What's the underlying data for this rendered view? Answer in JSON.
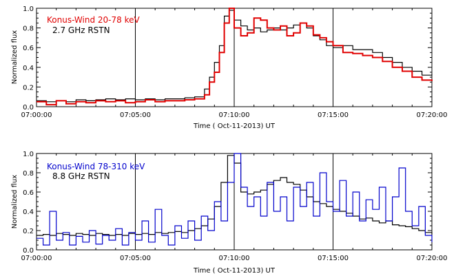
{
  "chart_data": [
    {
      "type": "line",
      "title": "",
      "xlabel": "Time ( Oct-11-2013) UT",
      "ylabel": "Normalized flux",
      "xlim": [
        "07:00:00",
        "07:20:00"
      ],
      "ylim": [
        0,
        1.0
      ],
      "x_ticks": [
        "07:00:00",
        "07:05:00",
        "07:10:00",
        "07:15:00",
        "07:20:00"
      ],
      "y_ticks": [
        "0.0",
        "0.2",
        "0.4",
        "0.6",
        "0.8",
        "1.0"
      ],
      "vlines": [
        "07:05:00",
        "07:10:00",
        "07:15:00"
      ],
      "legend": "top-left",
      "series": [
        {
          "name": "Konus-Wind 20-78 keV",
          "color": "#e00000",
          "x": [
            "07:00:00",
            "07:00:30",
            "07:01:00",
            "07:01:30",
            "07:02:00",
            "07:02:30",
            "07:03:00",
            "07:03:30",
            "07:04:00",
            "07:04:30",
            "07:05:00",
            "07:05:30",
            "07:06:00",
            "07:06:30",
            "07:07:00",
            "07:07:30",
            "07:08:00",
            "07:08:30",
            "07:08:45",
            "07:09:00",
            "07:09:15",
            "07:09:30",
            "07:09:45",
            "07:10:00",
            "07:10:20",
            "07:10:40",
            "07:11:00",
            "07:11:20",
            "07:11:40",
            "07:12:00",
            "07:12:20",
            "07:12:40",
            "07:13:00",
            "07:13:20",
            "07:13:40",
            "07:14:00",
            "07:14:20",
            "07:14:40",
            "07:15:00",
            "07:15:30",
            "07:16:00",
            "07:16:30",
            "07:17:00",
            "07:17:30",
            "07:18:00",
            "07:18:30",
            "07:19:00",
            "07:19:30",
            "07:20:00"
          ],
          "y": [
            0.05,
            0.02,
            0.06,
            0.03,
            0.05,
            0.04,
            0.06,
            0.05,
            0.06,
            0.04,
            0.05,
            0.07,
            0.05,
            0.06,
            0.06,
            0.07,
            0.08,
            0.12,
            0.25,
            0.35,
            0.55,
            0.85,
            1.0,
            0.8,
            0.72,
            0.75,
            0.9,
            0.88,
            0.8,
            0.78,
            0.82,
            0.72,
            0.75,
            0.85,
            0.82,
            0.73,
            0.7,
            0.66,
            0.62,
            0.55,
            0.54,
            0.52,
            0.5,
            0.46,
            0.4,
            0.36,
            0.3,
            0.27,
            0.26
          ]
        },
        {
          "name": "2.7 GHz RSTN",
          "color": "#000000",
          "x": [
            "07:00:00",
            "07:00:30",
            "07:01:00",
            "07:01:30",
            "07:02:00",
            "07:02:30",
            "07:03:00",
            "07:03:30",
            "07:04:00",
            "07:04:30",
            "07:05:00",
            "07:05:30",
            "07:06:00",
            "07:06:30",
            "07:07:00",
            "07:07:30",
            "07:08:00",
            "07:08:30",
            "07:08:45",
            "07:09:00",
            "07:09:15",
            "07:09:30",
            "07:09:45",
            "07:10:00",
            "07:10:20",
            "07:10:40",
            "07:11:00",
            "07:11:20",
            "07:11:40",
            "07:12:00",
            "07:12:20",
            "07:12:40",
            "07:13:00",
            "07:13:20",
            "07:13:40",
            "07:14:00",
            "07:14:20",
            "07:14:40",
            "07:15:00",
            "07:15:30",
            "07:16:00",
            "07:16:30",
            "07:17:00",
            "07:17:30",
            "07:18:00",
            "07:18:30",
            "07:19:00",
            "07:19:30",
            "07:20:00"
          ],
          "y": [
            0.06,
            0.05,
            0.06,
            0.05,
            0.07,
            0.06,
            0.07,
            0.08,
            0.07,
            0.08,
            0.07,
            0.08,
            0.07,
            0.08,
            0.08,
            0.09,
            0.1,
            0.18,
            0.3,
            0.45,
            0.62,
            0.92,
            0.98,
            0.88,
            0.82,
            0.78,
            0.8,
            0.76,
            0.78,
            0.8,
            0.78,
            0.8,
            0.83,
            0.85,
            0.8,
            0.72,
            0.68,
            0.62,
            0.6,
            0.62,
            0.58,
            0.58,
            0.55,
            0.5,
            0.45,
            0.4,
            0.36,
            0.32,
            0.33
          ]
        }
      ],
      "legend_labels": [
        "Konus-Wind 20-78 keV",
        "2.7 GHz RSTN"
      ]
    },
    {
      "type": "line",
      "title": "",
      "xlabel": "Time ( Oct-11-2013) UT",
      "ylabel": "Normalized flux",
      "xlim": [
        "07:00:00",
        "07:20:00"
      ],
      "ylim": [
        0,
        1.0
      ],
      "x_ticks": [
        "07:00:00",
        "07:05:00",
        "07:10:00",
        "07:15:00",
        "07:20:00"
      ],
      "y_ticks": [
        "0.0",
        "0.2",
        "0.4",
        "0.6",
        "0.8",
        "1.0"
      ],
      "vlines": [
        "07:05:00",
        "07:10:00",
        "07:15:00"
      ],
      "legend": "top-left",
      "series": [
        {
          "name": "Konus-Wind 78-310 keV",
          "color": "#0000cc",
          "x": [
            "07:00:00",
            "07:00:20",
            "07:00:40",
            "07:01:00",
            "07:01:20",
            "07:01:40",
            "07:02:00",
            "07:02:20",
            "07:02:40",
            "07:03:00",
            "07:03:20",
            "07:03:40",
            "07:04:00",
            "07:04:20",
            "07:04:40",
            "07:05:00",
            "07:05:20",
            "07:05:40",
            "07:06:00",
            "07:06:20",
            "07:06:40",
            "07:07:00",
            "07:07:20",
            "07:07:40",
            "07:08:00",
            "07:08:20",
            "07:08:40",
            "07:09:00",
            "07:09:20",
            "07:09:40",
            "07:10:00",
            "07:10:20",
            "07:10:40",
            "07:11:00",
            "07:11:20",
            "07:11:40",
            "07:12:00",
            "07:12:20",
            "07:12:40",
            "07:13:00",
            "07:13:20",
            "07:13:40",
            "07:14:00",
            "07:14:20",
            "07:14:40",
            "07:15:00",
            "07:15:20",
            "07:15:40",
            "07:16:00",
            "07:16:20",
            "07:16:40",
            "07:17:00",
            "07:17:20",
            "07:17:40",
            "07:18:00",
            "07:18:20",
            "07:18:40",
            "07:19:00",
            "07:19:20",
            "07:19:40",
            "07:20:00"
          ],
          "y": [
            0.12,
            0.05,
            0.4,
            0.1,
            0.18,
            0.05,
            0.14,
            0.08,
            0.2,
            0.06,
            0.15,
            0.1,
            0.22,
            0.05,
            0.18,
            0.1,
            0.3,
            0.08,
            0.42,
            0.15,
            0.05,
            0.25,
            0.12,
            0.3,
            0.1,
            0.35,
            0.2,
            0.5,
            0.3,
            0.7,
            1.0,
            0.65,
            0.45,
            0.55,
            0.35,
            0.7,
            0.4,
            0.55,
            0.3,
            0.65,
            0.45,
            0.7,
            0.35,
            0.8,
            0.5,
            0.4,
            0.72,
            0.35,
            0.6,
            0.3,
            0.52,
            0.42,
            0.65,
            0.3,
            0.55,
            0.85,
            0.4,
            0.25,
            0.45,
            0.15,
            0.08
          ]
        },
        {
          "name": "8.8 GHz RSTN",
          "color": "#000000",
          "x": [
            "07:00:00",
            "07:00:20",
            "07:00:40",
            "07:01:00",
            "07:01:20",
            "07:01:40",
            "07:02:00",
            "07:02:20",
            "07:02:40",
            "07:03:00",
            "07:03:20",
            "07:03:40",
            "07:04:00",
            "07:04:20",
            "07:04:40",
            "07:05:00",
            "07:05:20",
            "07:05:40",
            "07:06:00",
            "07:06:20",
            "07:06:40",
            "07:07:00",
            "07:07:20",
            "07:07:40",
            "07:08:00",
            "07:08:20",
            "07:08:40",
            "07:09:00",
            "07:09:20",
            "07:09:40",
            "07:10:00",
            "07:10:20",
            "07:10:40",
            "07:11:00",
            "07:11:20",
            "07:11:40",
            "07:12:00",
            "07:12:20",
            "07:12:40",
            "07:13:00",
            "07:13:20",
            "07:13:40",
            "07:14:00",
            "07:14:20",
            "07:14:40",
            "07:15:00",
            "07:15:20",
            "07:15:40",
            "07:16:00",
            "07:16:20",
            "07:16:40",
            "07:17:00",
            "07:17:20",
            "07:17:40",
            "07:18:00",
            "07:18:20",
            "07:18:40",
            "07:19:00",
            "07:19:20",
            "07:19:40",
            "07:20:00"
          ],
          "y": [
            0.15,
            0.16,
            0.15,
            0.17,
            0.16,
            0.15,
            0.17,
            0.16,
            0.15,
            0.17,
            0.16,
            0.15,
            0.16,
            0.15,
            0.17,
            0.16,
            0.17,
            0.16,
            0.18,
            0.17,
            0.18,
            0.19,
            0.18,
            0.2,
            0.22,
            0.25,
            0.32,
            0.45,
            0.7,
            0.98,
            0.9,
            0.6,
            0.58,
            0.6,
            0.62,
            0.68,
            0.72,
            0.75,
            0.7,
            0.68,
            0.62,
            0.55,
            0.5,
            0.48,
            0.45,
            0.42,
            0.4,
            0.38,
            0.35,
            0.32,
            0.33,
            0.3,
            0.28,
            0.3,
            0.26,
            0.25,
            0.24,
            0.22,
            0.2,
            0.18,
            0.16
          ]
        }
      ],
      "legend_labels": [
        "Konus-Wind 78-310 keV",
        "8.8 GHz RSTN"
      ]
    }
  ]
}
